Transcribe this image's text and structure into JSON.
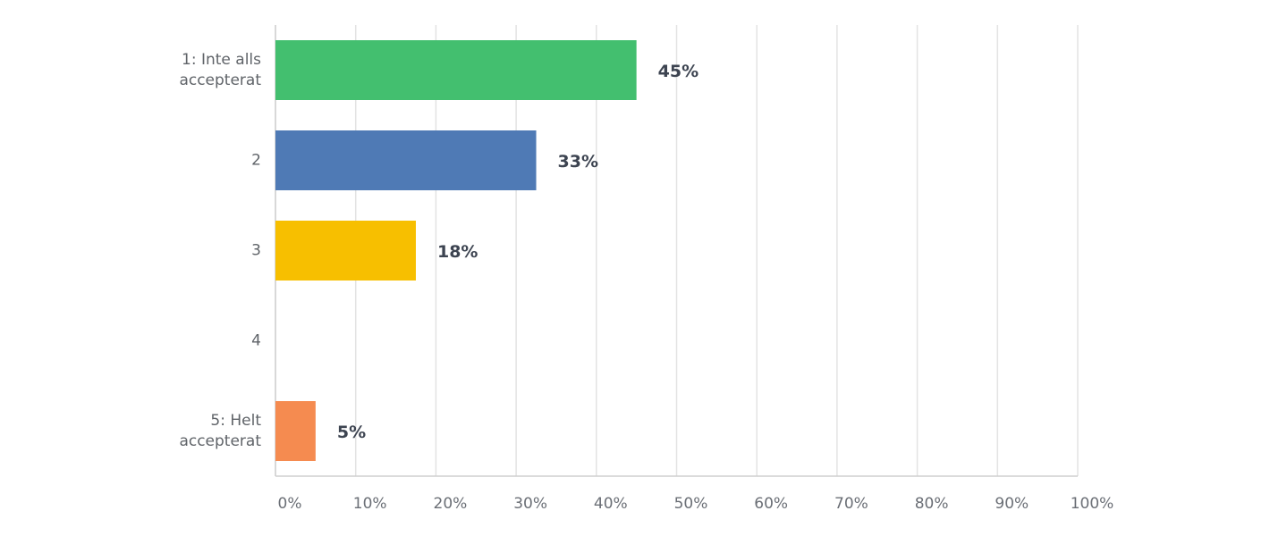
{
  "chart_data": {
    "type": "bar",
    "orientation": "horizontal",
    "categories": [
      "1: Inte alls accepterat",
      "2",
      "3",
      "4",
      "5: Helt accepterat"
    ],
    "values": [
      45,
      32.5,
      17.5,
      null,
      5
    ],
    "value_labels": [
      "45%",
      "33%",
      "18%",
      null,
      "5%"
    ],
    "colors": [
      "#43bf6f",
      "#4f7ab5",
      "#f7bf00",
      null,
      "#f58b50"
    ],
    "xlim": [
      0,
      100
    ],
    "xticks": [
      {
        "value": 0,
        "label": "0%"
      },
      {
        "value": 10,
        "label": "10%"
      },
      {
        "value": 20,
        "label": "20%"
      },
      {
        "value": 30,
        "label": "30%"
      },
      {
        "value": 40,
        "label": "40%"
      },
      {
        "value": 50,
        "label": "50%"
      },
      {
        "value": 60,
        "label": "60%"
      },
      {
        "value": 70,
        "label": "70%"
      },
      {
        "value": 80,
        "label": "80%"
      },
      {
        "value": 90,
        "label": "90%"
      },
      {
        "value": 100,
        "label": "100%"
      }
    ],
    "grid": true
  }
}
